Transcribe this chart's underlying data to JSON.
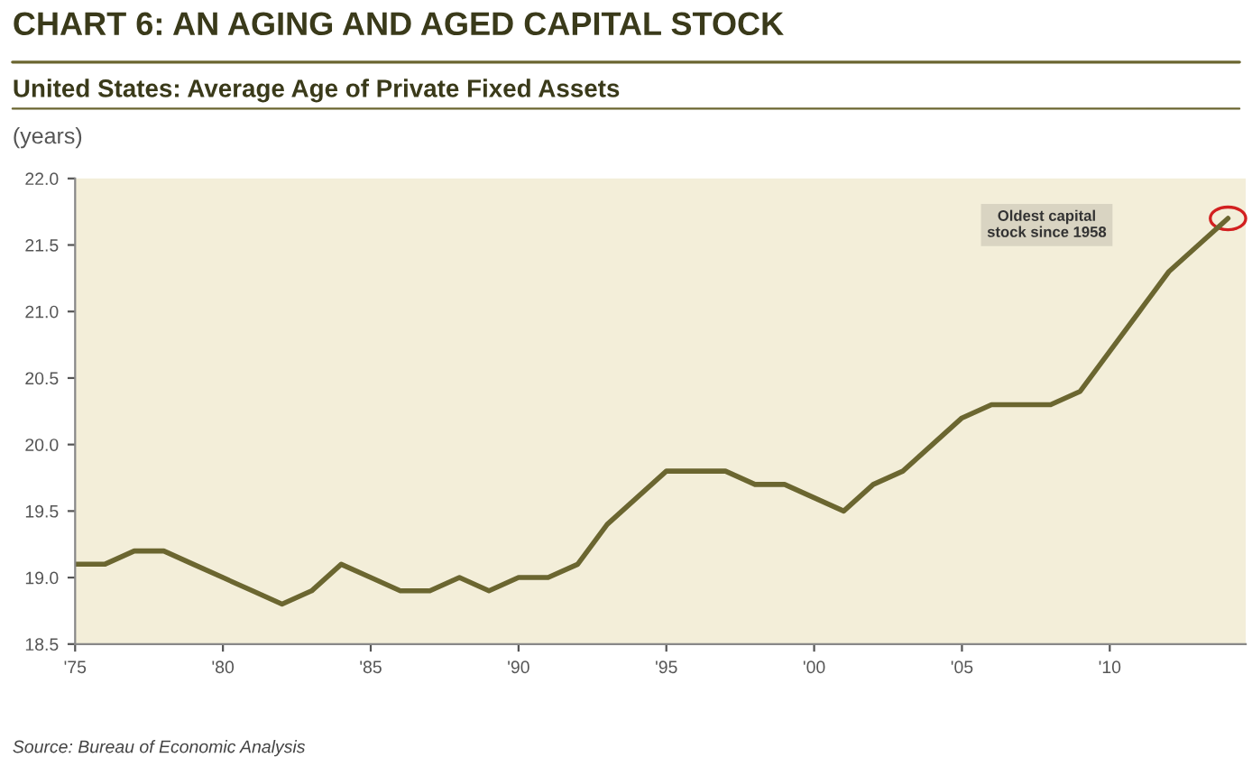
{
  "chart_data": {
    "type": "line",
    "title": "CHART 6: AN AGING AND AGED CAPITAL STOCK",
    "subtitle": "United States: Average Age of Private Fixed Assets",
    "ylabel": "(years)",
    "x": [
      1975,
      1976,
      1977,
      1978,
      1979,
      1980,
      1981,
      1982,
      1983,
      1984,
      1985,
      1986,
      1987,
      1988,
      1989,
      1990,
      1991,
      1992,
      1993,
      1994,
      1995,
      1996,
      1997,
      1998,
      1999,
      2000,
      2001,
      2002,
      2003,
      2004,
      2005,
      2006,
      2007,
      2008,
      2009,
      2010,
      2011,
      2012,
      2013,
      2014
    ],
    "series": [
      {
        "color": "#6b6630",
        "values": [
          19.1,
          19.1,
          19.2,
          19.2,
          19.1,
          19.0,
          18.9,
          18.8,
          18.9,
          19.1,
          19.0,
          18.9,
          18.9,
          19.0,
          18.9,
          19.0,
          19.0,
          19.1,
          19.4,
          19.6,
          19.8,
          19.8,
          19.8,
          19.7,
          19.7,
          19.6,
          19.5,
          19.7,
          19.8,
          20.0,
          20.2,
          20.3,
          20.3,
          20.3,
          20.4,
          20.7,
          21.0,
          21.3,
          21.5,
          21.7
        ]
      }
    ],
    "xlim": [
      1975,
      2014.6
    ],
    "ylim": [
      18.5,
      22.0
    ],
    "xticks": [
      {
        "value": 1975,
        "label": "'75"
      },
      {
        "value": 1980,
        "label": "'80"
      },
      {
        "value": 1985,
        "label": "'85"
      },
      {
        "value": 1990,
        "label": "'90"
      },
      {
        "value": 1995,
        "label": "'95"
      },
      {
        "value": 2000,
        "label": "'00"
      },
      {
        "value": 2005,
        "label": "'05"
      },
      {
        "value": 2010,
        "label": "'10"
      }
    ],
    "yticks": [
      {
        "value": 18.5,
        "label": "18.5"
      },
      {
        "value": 19.0,
        "label": "19.0"
      },
      {
        "value": 19.5,
        "label": "19.5"
      },
      {
        "value": 20.0,
        "label": "20.0"
      },
      {
        "value": 20.5,
        "label": "20.5"
      },
      {
        "value": 21.0,
        "label": "21.0"
      },
      {
        "value": 21.5,
        "label": "21.5"
      },
      {
        "value": 22.0,
        "label": "22.0"
      }
    ],
    "grid": false,
    "legend": false,
    "line_style": "solid",
    "marker": "none",
    "annotations": [
      "Oldest capital\nstock since 1958",
      "Source: Bureau of Economic Analysis"
    ]
  }
}
